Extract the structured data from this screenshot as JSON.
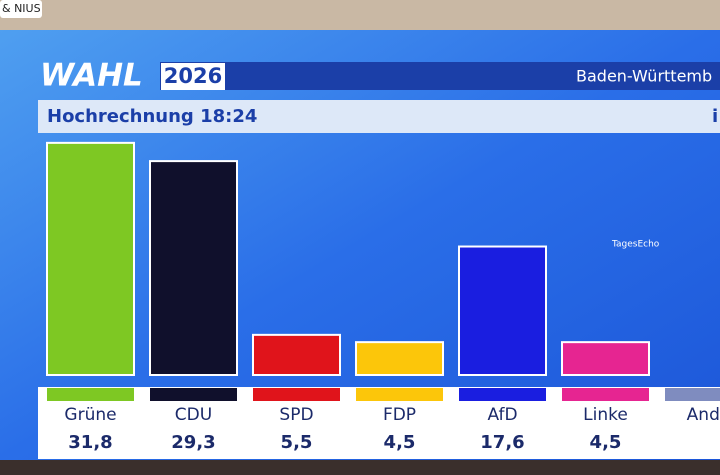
{
  "source_tag": "& NIUS",
  "logo": {
    "word": "WAHL",
    "year": "2026"
  },
  "region": "Baden-Württemb",
  "info_mark": "i",
  "watermark": "TagesEcho",
  "chart_data": {
    "type": "bar",
    "title": "Hochrechnung 18:24",
    "categories": [
      "Grüne",
      "CDU",
      "SPD",
      "FDP",
      "AfD",
      "Linke",
      "Ande"
    ],
    "values": [
      31.8,
      29.3,
      5.5,
      4.5,
      17.6,
      4.5,
      null
    ],
    "value_labels": [
      "31,8",
      "29,3",
      "5,5",
      "4,5",
      "17,6",
      "4,5",
      null
    ],
    "colors": [
      "#7ec823",
      "#10102c",
      "#e0141b",
      "#fcc60a",
      "#1a1ee0",
      "#e62591",
      "#7f8cbf"
    ]
  }
}
